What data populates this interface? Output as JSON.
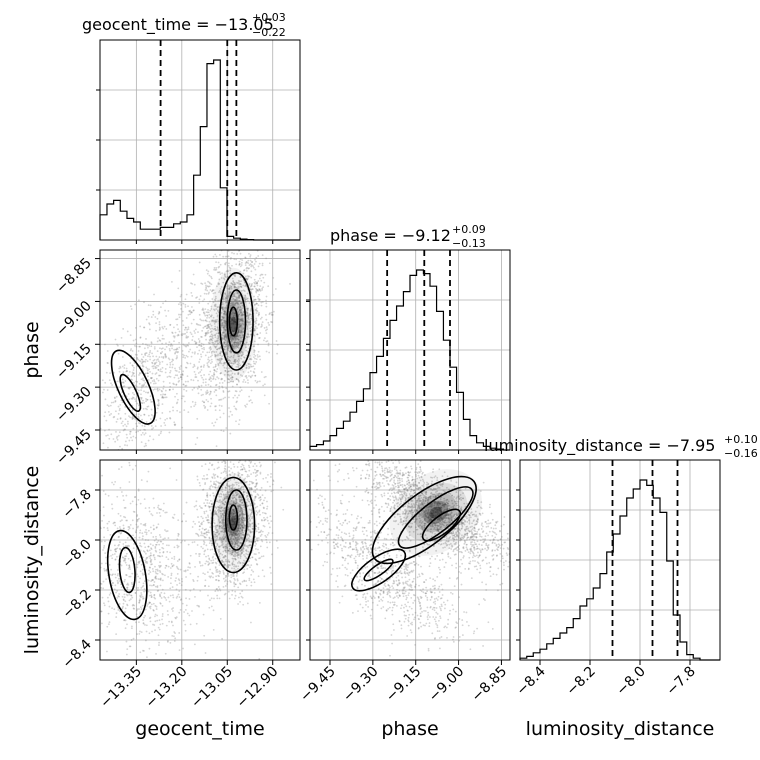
{
  "chart_data": {
    "type": "corner",
    "parameters": [
      "geocent_time",
      "phase",
      "luminosity_distance"
    ],
    "titles": [
      {
        "name": "geocent_time",
        "median": "−13.05",
        "plus": "+0.03",
        "minus": "−0.22"
      },
      {
        "name": "phase",
        "median": "−9.12",
        "plus": "+0.09",
        "minus": "−0.13"
      },
      {
        "name": "luminosity_distance",
        "median": "−7.95",
        "plus": "+0.10",
        "minus": "−0.16"
      }
    ],
    "axis_labels": [
      "geocent_time",
      "phase",
      "luminosity_distance"
    ],
    "ranges": {
      "geocent_time": [
        -13.47,
        -12.81
      ],
      "phase": [
        -9.52,
        -8.82
      ],
      "luminosity_distance": [
        -8.48,
        -7.68
      ]
    },
    "ticks": {
      "geocent_time": [
        -13.35,
        -13.2,
        -13.05,
        -12.9
      ],
      "phase": [
        -9.45,
        -9.3,
        -9.15,
        -9.0,
        -8.85
      ],
      "luminosity_distance": [
        -8.4,
        -8.2,
        -8.0,
        -7.8
      ]
    },
    "tick_labels": {
      "geocent_time": [
        "−13.35",
        "−13.20",
        "−13.05",
        "−12.90"
      ],
      "phase": [
        "−9.45",
        "−9.30",
        "−9.15",
        "−9.00",
        "−8.85"
      ],
      "luminosity_distance": [
        "−8.4",
        "−8.2",
        "−8.0",
        "−7.8"
      ]
    },
    "quantiles": {
      "geocent_time": [
        -13.27,
        -13.05,
        -13.02
      ],
      "phase": [
        -9.25,
        -9.12,
        -9.03
      ],
      "luminosity_distance": [
        -8.11,
        -7.95,
        -7.85
      ]
    },
    "histograms": {
      "geocent_time": {
        "edges": [
          -13.47,
          -13.447,
          -13.425,
          -13.403,
          -13.381,
          -13.359,
          -13.337,
          -13.315,
          -13.293,
          -13.271,
          -13.249,
          -13.227,
          -13.205,
          -13.183,
          -13.161,
          -13.139,
          -13.117,
          -13.095,
          -13.073,
          -13.051,
          -13.029,
          -13.007,
          -12.985,
          -12.963,
          -12.941,
          -12.919,
          -12.897,
          -12.875,
          -12.853,
          -12.831,
          -12.81
        ],
        "counts": [
          0.14,
          0.2,
          0.22,
          0.16,
          0.12,
          0.1,
          0.06,
          0.06,
          0.06,
          0.07,
          0.07,
          0.09,
          0.1,
          0.14,
          0.36,
          0.63,
          0.98,
          1.0,
          0.29,
          0.02,
          0.01,
          0.005,
          0.002,
          0,
          0,
          0,
          0,
          0,
          0,
          0
        ]
      },
      "phase": {
        "edges": [
          -9.52,
          -9.497,
          -9.473,
          -9.45,
          -9.427,
          -9.403,
          -9.38,
          -9.357,
          -9.333,
          -9.31,
          -9.287,
          -9.263,
          -9.24,
          -9.217,
          -9.193,
          -9.17,
          -9.147,
          -9.123,
          -9.1,
          -9.077,
          -9.053,
          -9.03,
          -9.007,
          -8.983,
          -8.96,
          -8.937,
          -8.913,
          -8.89,
          -8.867,
          -8.843,
          -8.82
        ],
        "counts": [
          0.02,
          0.03,
          0.05,
          0.08,
          0.12,
          0.16,
          0.21,
          0.27,
          0.34,
          0.43,
          0.52,
          0.62,
          0.72,
          0.8,
          0.88,
          0.97,
          1.0,
          0.98,
          0.91,
          0.77,
          0.61,
          0.46,
          0.32,
          0.17,
          0.08,
          0.04,
          0.02,
          0.01,
          0.005,
          0
        ]
      },
      "luminosity_distance": {
        "edges": [
          -8.48,
          -8.453,
          -8.427,
          -8.4,
          -8.373,
          -8.347,
          -8.32,
          -8.293,
          -8.267,
          -8.24,
          -8.213,
          -8.187,
          -8.16,
          -8.133,
          -8.107,
          -8.08,
          -8.053,
          -8.027,
          -8.0,
          -7.973,
          -7.947,
          -7.92,
          -7.893,
          -7.867,
          -7.84,
          -7.813,
          -7.787,
          -7.76,
          -7.733,
          -7.707,
          -7.68
        ],
        "counts": [
          0.01,
          0.02,
          0.04,
          0.06,
          0.09,
          0.12,
          0.15,
          0.18,
          0.23,
          0.3,
          0.34,
          0.4,
          0.48,
          0.6,
          0.7,
          0.8,
          0.9,
          0.95,
          1.0,
          0.97,
          0.9,
          0.82,
          0.55,
          0.25,
          0.1,
          0.03,
          0.01,
          0,
          0,
          0
        ]
      }
    },
    "grid": true,
    "colors": {
      "line": "#000000",
      "grid": "#b0b0b0",
      "scatter": "#888888"
    }
  }
}
